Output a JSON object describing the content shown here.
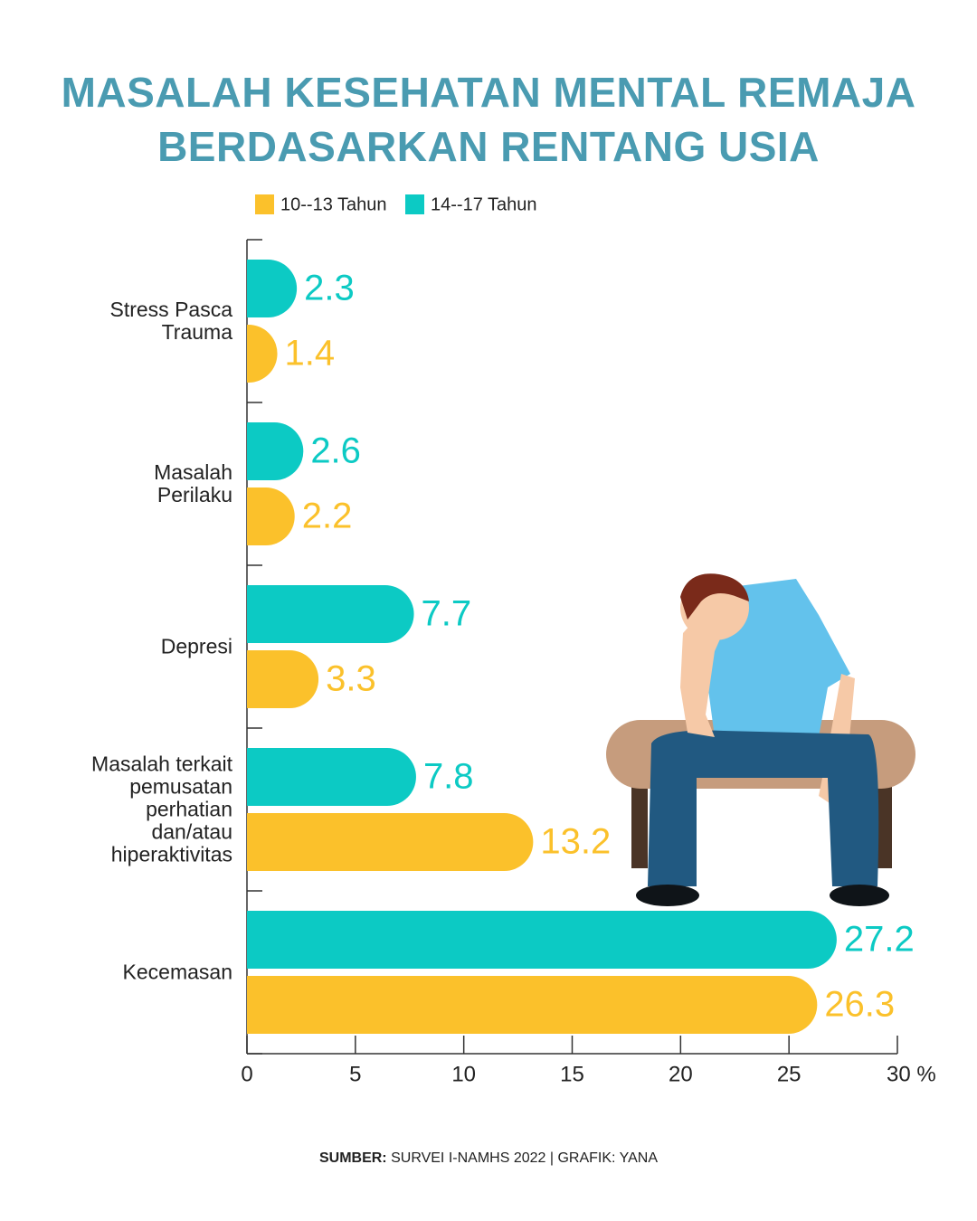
{
  "chart_data": {
    "type": "bar",
    "orientation": "horizontal",
    "title": "MASALAH KESEHATAN MENTAL REMAJA BERDASARKAN RENTANG USIA",
    "categories": [
      "Stress Pasca Trauma",
      "Masalah Perilaku",
      "Depresi",
      "Masalah terkait pemusatan perhatian dan/atau hiperaktivitas",
      "Kecemasan"
    ],
    "series": [
      {
        "name": "10--13 Tahun",
        "color": "#fbc12b",
        "values": [
          1.4,
          2.2,
          3.3,
          13.2,
          26.3
        ]
      },
      {
        "name": "14--17 Tahun",
        "color": "#0ccac4",
        "values": [
          2.3,
          2.6,
          7.7,
          7.8,
          27.2
        ]
      }
    ],
    "xlim": [
      0,
      30
    ],
    "xticks": [
      0,
      5,
      10,
      15,
      20,
      25,
      {
        "value": 30,
        "label": "30 %"
      }
    ],
    "source_label": "SUMBER:",
    "source": "SURVEI I-NAMHS 2022  | GRAFIK: YANA"
  }
}
